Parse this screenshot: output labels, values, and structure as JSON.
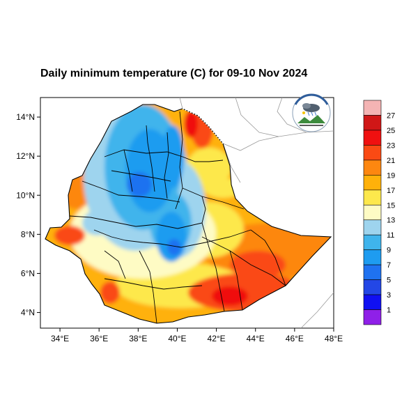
{
  "title": "Daily minimum temperature (C) for 09-10 Nov 2024",
  "map": {
    "lon_range": [
      33,
      48
    ],
    "lat_range": [
      3.2,
      15
    ],
    "x_ticks": [
      {
        "value": 34,
        "label": "34°E"
      },
      {
        "value": 36,
        "label": "36°E"
      },
      {
        "value": 38,
        "label": "38°E"
      },
      {
        "value": 40,
        "label": "40°E"
      },
      {
        "value": 42,
        "label": "42°E"
      },
      {
        "value": 44,
        "label": "44°E"
      },
      {
        "value": 46,
        "label": "46°E"
      },
      {
        "value": 48,
        "label": "48°E"
      }
    ],
    "y_ticks": [
      {
        "value": 14,
        "label": "14°N"
      },
      {
        "value": 12,
        "label": "12°N"
      },
      {
        "value": 10,
        "label": "10°N"
      },
      {
        "value": 8,
        "label": "8°N"
      },
      {
        "value": 6,
        "label": "6°N"
      },
      {
        "value": 4,
        "label": "4°N"
      }
    ]
  },
  "colorbar": {
    "colors": [
      "#f4b4b4",
      "#d01717",
      "#f01010",
      "#fa4a14",
      "#fd8710",
      "#ffb10a",
      "#fde84c",
      "#fefbc4",
      "#9ed4ee",
      "#3fb4ec",
      "#1e9cf0",
      "#1f72f0",
      "#2347e6",
      "#1010f2",
      "#8f20e8"
    ],
    "labels": [
      "27",
      "25",
      "23",
      "21",
      "19",
      "17",
      "15",
      "13",
      "11",
      "9",
      "7",
      "5",
      "3",
      "1"
    ]
  }
}
